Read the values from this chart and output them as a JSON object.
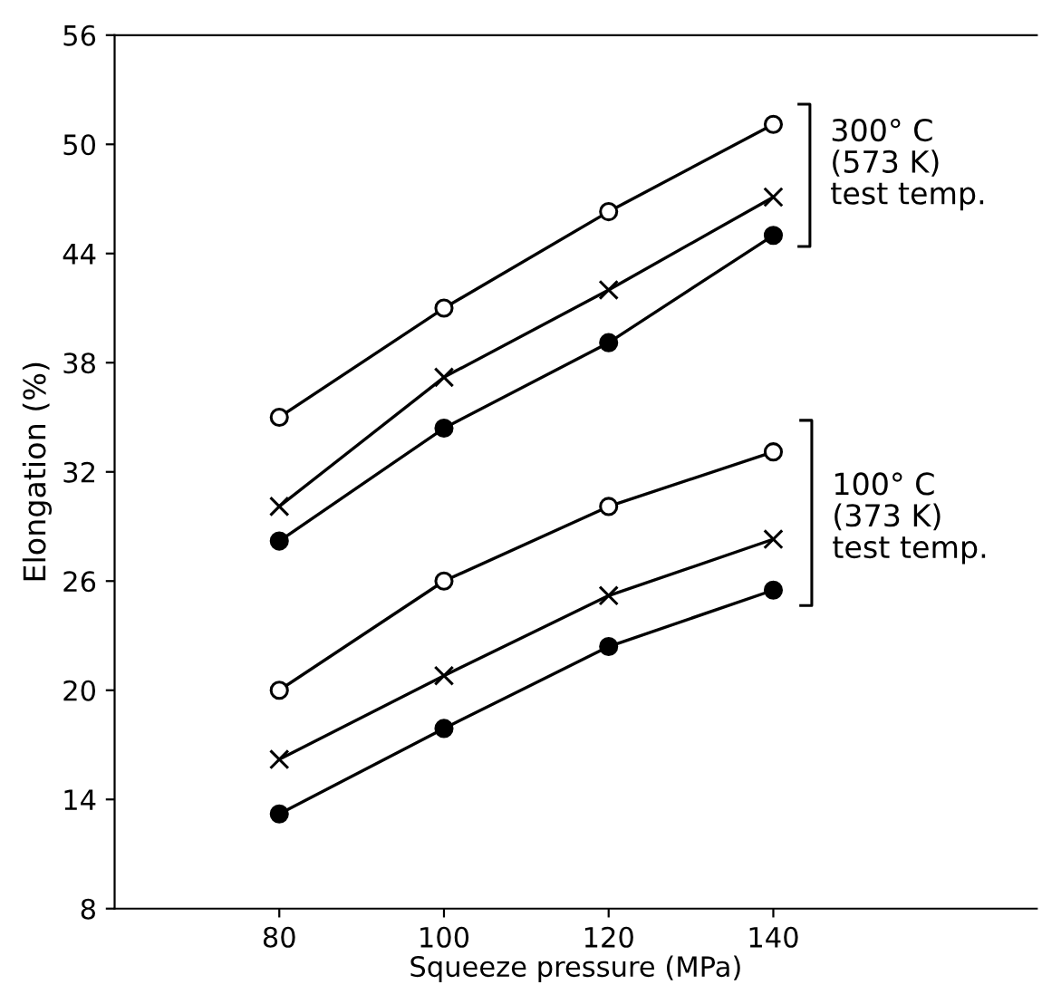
{
  "chart_data": {
    "type": "line",
    "xlabel": "Squeeze pressure (MPa)",
    "ylabel": "Elongation (%)",
    "x": [
      80,
      100,
      120,
      140
    ],
    "series": [
      {
        "color": "#000000",
        "marker": "circle",
        "values": [
          35,
          41,
          46.3,
          51.1
        ]
      },
      {
        "color": "#000000",
        "marker": "cross",
        "values": [
          30.1,
          37.2,
          42,
          47.1
        ]
      },
      {
        "color": "#000000",
        "marker": "circle",
        "values": [
          28.2,
          34.4,
          39.1,
          45
        ]
      },
      {
        "color": "#000000",
        "marker": "circle",
        "values": [
          20,
          26,
          30.1,
          33.1
        ]
      },
      {
        "color": "#000000",
        "marker": "cross",
        "values": [
          16.2,
          20.8,
          25.2,
          28.3
        ]
      },
      {
        "color": "#000000",
        "marker": "circle",
        "values": [
          13.2,
          17.9,
          22.4,
          25.5
        ]
      }
    ],
    "annotations": [
      "300° C\n(573 K)\ntest temp.",
      "100° C\n(373 K)\ntest temp."
    ],
    "xlim": [
      60,
      172
    ],
    "ylim": [
      8,
      56
    ],
    "xticks": [
      80,
      100,
      120,
      140
    ],
    "yticks": [
      8,
      14,
      20,
      26,
      32,
      38,
      44,
      50,
      56
    ],
    "grid": false,
    "legend": false,
    "line_style": "solid"
  }
}
